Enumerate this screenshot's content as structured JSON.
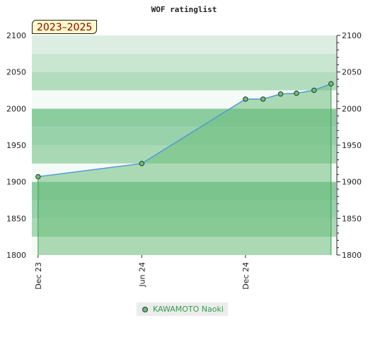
{
  "title": "WOF ratinglist",
  "period_badge": "2023–2025",
  "legend": {
    "series_name": "KAWAMOTO Naoki"
  },
  "chart_data": {
    "type": "area",
    "title": "WOF ratinglist",
    "ylim": [
      1800,
      2100
    ],
    "y_ticks": [
      1800,
      1850,
      1900,
      1950,
      2000,
      2050,
      2100
    ],
    "x_ticks": [
      {
        "label": "Dec 23",
        "date": "2023-12-01"
      },
      {
        "label": "Jun 24",
        "date": "2024-06-01"
      },
      {
        "label": "Dec 24",
        "date": "2024-12-01"
      }
    ],
    "xlim": [
      "2023-11-20",
      "2025-05-10"
    ],
    "series": [
      {
        "name": "KAWAMOTO Naoki",
        "x": [
          "2023-12-01",
          "2024-06-01",
          "2024-12-01",
          "2025-01-01",
          "2025-02-01",
          "2025-03-01",
          "2025-04-01",
          "2025-05-01"
        ],
        "values": [
          1907,
          1925,
          2013,
          2013,
          2020,
          2021,
          2025,
          2034
        ]
      }
    ],
    "colors": {
      "line": "#4f9ad6",
      "fill": "#6dbd7d",
      "marker": "#6dbd7d",
      "marker_stroke": "#1f3f25",
      "drop_line": "#3a9a4e"
    },
    "grid": true
  }
}
